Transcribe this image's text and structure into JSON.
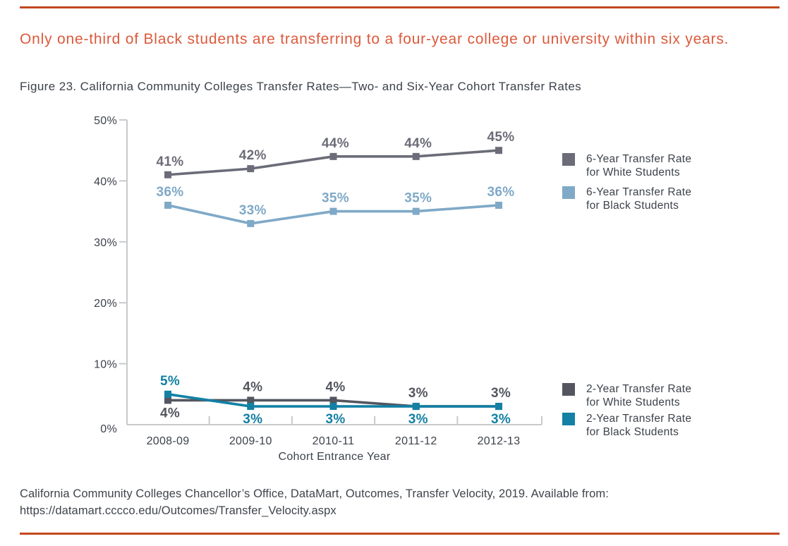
{
  "page": {
    "headline": "Only one-third of Black students are transferring to a four-year college or university within six years.",
    "figure_caption": "Figure 23. California Community Colleges Transfer Rates—Two- and Six-Year Cohort Transfer Rates",
    "source": "California Community Colleges Chancellor’s Office, DataMart, Outcomes, Transfer Velocity, 2019. Available from: https://datamart.cccco.edu/Outcomes/Transfer_Velocity.aspx",
    "accent_rule_color": "#c2481f",
    "headline_color": "#dc5a3c",
    "text_color": "#3c424b"
  },
  "chart_data": {
    "type": "line",
    "title": "",
    "xlabel": "Cohort Entrance Year",
    "ylabel": "",
    "categories": [
      "2008-09",
      "2009-10",
      "2010-11",
      "2011-12",
      "2012-13"
    ],
    "yticks": [
      "0%",
      "10%",
      "20%",
      "30%",
      "40%",
      "50%"
    ],
    "ylim": [
      0,
      50
    ],
    "grid": false,
    "legend_position": "right",
    "axis_color": "#c9cacb",
    "tick_label_color": "#3c424b",
    "series": [
      {
        "name": "6-Year Transfer Rate for White Students",
        "color": "#6b6c78",
        "values": [
          41,
          42,
          44,
          44,
          45
        ],
        "labels": [
          "41%",
          "42%",
          "44%",
          "44%",
          "45%"
        ],
        "label_positions": [
          "above",
          "above",
          "above",
          "above",
          "above"
        ]
      },
      {
        "name": "6-Year Transfer Rate for Black Students",
        "color": "#7fa9c7",
        "values": [
          36,
          33,
          35,
          35,
          36
        ],
        "labels": [
          "36%",
          "33%",
          "35%",
          "35%",
          "36%"
        ],
        "label_positions": [
          "above",
          "above",
          "above",
          "above",
          "above"
        ]
      },
      {
        "name": "2-Year Transfer Rate for White Students",
        "color": "#53565f",
        "values": [
          4,
          4,
          4,
          3,
          3
        ],
        "labels": [
          "4%",
          "4%",
          "4%",
          "3%",
          "3%"
        ],
        "label_positions": [
          "below",
          "above",
          "above",
          "above",
          "above"
        ]
      },
      {
        "name": "2-Year Transfer Rate for Black Students",
        "color": "#1380a4",
        "values": [
          5,
          3,
          3,
          3,
          3
        ],
        "labels": [
          "5%",
          "3%",
          "3%",
          "3%",
          "3%"
        ],
        "label_positions": [
          "above",
          "below",
          "below",
          "below",
          "below"
        ]
      }
    ]
  },
  "legend_top": {
    "items": [
      {
        "line1": "6-Year Transfer Rate",
        "line2": "for White Students",
        "color": "#6b6c78"
      },
      {
        "line1": "6-Year Transfer Rate",
        "line2": "for Black Students",
        "color": "#7fa9c7"
      }
    ]
  },
  "legend_bottom": {
    "items": [
      {
        "line1": "2-Year Transfer Rate",
        "line2": "for White Students",
        "color": "#53565f"
      },
      {
        "line1": "2-Year Transfer Rate",
        "line2": "for Black Students",
        "color": "#1380a4"
      }
    ]
  }
}
